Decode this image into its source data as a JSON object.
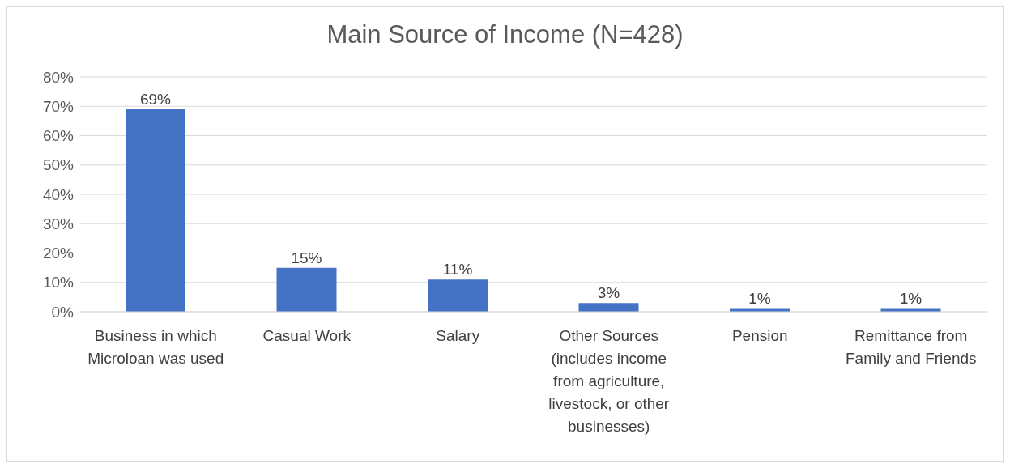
{
  "chart_data": {
    "type": "bar",
    "title": "Main Source of Income (N=428)",
    "categories": [
      "Business in which Microloan was used",
      "Casual Work",
      "Salary",
      "Other Sources (includes income from agriculture, livestock, or other businesses)",
      "Pension",
      "Remittance from Family and Friends"
    ],
    "values": [
      69,
      15,
      11,
      3,
      1,
      1
    ],
    "value_labels": [
      "69%",
      "15%",
      "11%",
      "3%",
      "1%",
      "1%"
    ],
    "color": "#4472c4",
    "ylim": [
      0,
      80
    ],
    "yticks": [
      {
        "value": 0,
        "label": "0%"
      },
      {
        "value": 10,
        "label": "10%"
      },
      {
        "value": 20,
        "label": "20%"
      },
      {
        "value": 30,
        "label": "30%"
      },
      {
        "value": 40,
        "label": "40%"
      },
      {
        "value": 50,
        "label": "50%"
      },
      {
        "value": 60,
        "label": "60%"
      },
      {
        "value": 70,
        "label": "70%"
      },
      {
        "value": 80,
        "label": "80%"
      }
    ],
    "grid": "y",
    "legend": false
  }
}
